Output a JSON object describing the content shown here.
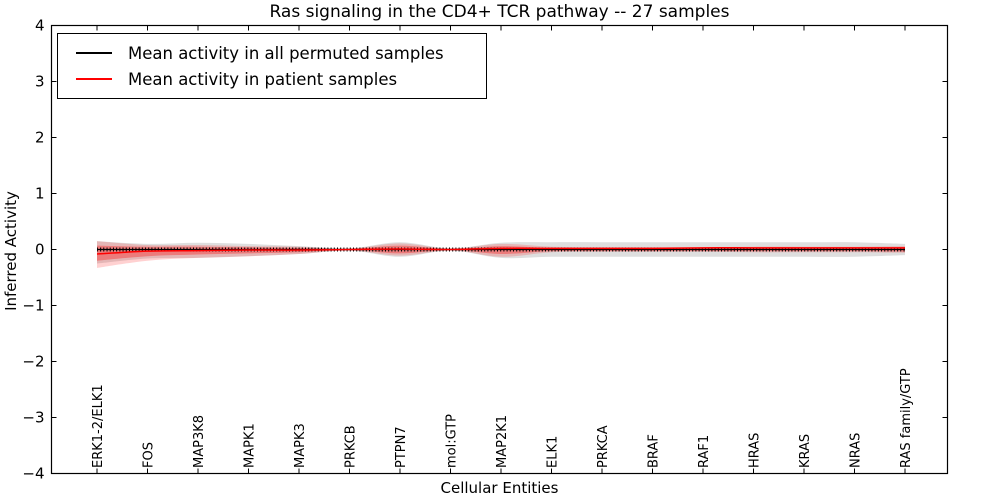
{
  "chart_data": {
    "type": "line",
    "title": "Ras signaling in the CD4+ TCR pathway -- 27 samples",
    "xlabel": "Cellular Entities",
    "ylabel": "Inferred Activity",
    "ylim": [
      -4,
      4
    ],
    "ytick_values": [
      -4,
      -3,
      -2,
      -1,
      0,
      1,
      2,
      3,
      4
    ],
    "ytick_labels": [
      "−4",
      "−3",
      "−2",
      "−1",
      "0",
      "1",
      "2",
      "3",
      "4"
    ],
    "grid": false,
    "legend_position": "upper left",
    "categories": [
      "ERK1-2/ELK1",
      "FOS",
      "MAP3K8",
      "MAPK1",
      "MAPK3",
      "PRKCB",
      "PTPN7",
      "mol:GTP",
      "MAP2K1",
      "ELK1",
      "PRKCA",
      "BRAF",
      "RAF1",
      "HRAS",
      "KRAS",
      "NRAS",
      "RAS family/GTP"
    ],
    "legend": [
      {
        "label": "Mean activity in all permuted samples",
        "color": "#000000"
      },
      {
        "label": "Mean activity in patient samples",
        "color": "#ff0000"
      }
    ],
    "series": [
      {
        "name": "Mean activity in all permuted samples",
        "color": "#000000",
        "values": [
          0,
          0,
          0,
          0,
          0,
          0,
          0,
          0,
          0,
          0,
          0,
          0,
          0,
          0,
          0,
          0,
          0
        ]
      },
      {
        "name": "Mean activity in patient samples",
        "color": "#ff0000",
        "values": [
          -0.08,
          -0.03,
          -0.02,
          -0.01,
          -0.01,
          0,
          0.01,
          0,
          0.02,
          0.02,
          0.02,
          0.02,
          0.03,
          0.03,
          0.03,
          0.03,
          0.03
        ]
      }
    ],
    "bands": [
      {
        "name": "permuted-sample-range",
        "color": "#888888",
        "opacity": 0.28,
        "upper": [
          0.15,
          0.1,
          0.12,
          0.1,
          0.06,
          0.02,
          0.13,
          0.02,
          0.12,
          0.13,
          0.13,
          0.13,
          0.13,
          0.13,
          0.13,
          0.13,
          0.1
        ],
        "lower": [
          -0.25,
          -0.16,
          -0.15,
          -0.12,
          -0.08,
          -0.02,
          -0.13,
          -0.02,
          -0.15,
          -0.13,
          -0.13,
          -0.13,
          -0.13,
          -0.13,
          -0.13,
          -0.13,
          -0.1
        ]
      },
      {
        "name": "patient-sample-range",
        "color": "#ff0000",
        "opacity": 0.18,
        "upper": [
          0.15,
          0.08,
          0.08,
          0.06,
          0.05,
          0.015,
          0.11,
          0.015,
          0.1,
          0.05,
          0.04,
          0.04,
          0.04,
          0.05,
          0.05,
          0.05,
          0.06
        ],
        "lower": [
          -0.33,
          -0.2,
          -0.15,
          -0.12,
          -0.08,
          -0.015,
          -0.11,
          -0.015,
          -0.13,
          -0.05,
          -0.04,
          -0.04,
          -0.04,
          -0.05,
          -0.05,
          -0.05,
          -0.06
        ]
      },
      {
        "name": "patient-sample-std",
        "color": "#ff0000",
        "opacity": 0.32,
        "upper": [
          0.07,
          0.05,
          0.05,
          0.04,
          0.03,
          0.01,
          0.07,
          0.01,
          0.06,
          0.03,
          0.03,
          0.03,
          0.03,
          0.03,
          0.03,
          0.03,
          0.04
        ],
        "lower": [
          -0.2,
          -0.12,
          -0.09,
          -0.07,
          -0.05,
          -0.01,
          -0.07,
          -0.01,
          -0.08,
          -0.03,
          -0.03,
          -0.03,
          -0.03,
          -0.03,
          -0.03,
          -0.03,
          -0.04
        ]
      }
    ]
  }
}
